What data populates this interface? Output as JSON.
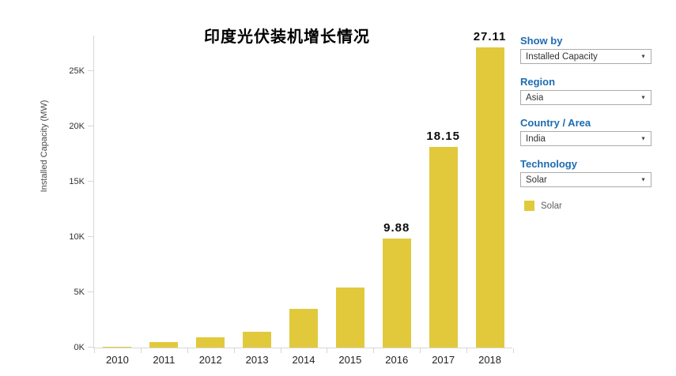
{
  "chart": {
    "title": "印度光伏装机增长情况",
    "y_axis_title": "Installed Capacity (MW)"
  },
  "chart_data": {
    "type": "bar",
    "title": "印度光伏装机增长情况",
    "xlabel": "",
    "ylabel": "Installed Capacity (MW)",
    "units": "thousand MW (K)",
    "categories": [
      "2010",
      "2011",
      "2012",
      "2013",
      "2014",
      "2015",
      "2016",
      "2017",
      "2018"
    ],
    "values": [
      0.1,
      0.5,
      0.9,
      1.4,
      3.5,
      5.4,
      9.88,
      18.15,
      27.11
    ],
    "bar_labels": [
      "",
      "",
      "",
      "",
      "",
      "",
      "9.88",
      "18.15",
      "27.11"
    ],
    "y_ticks": [
      {
        "label": "0K",
        "v": 0
      },
      {
        "label": "5K",
        "v": 5
      },
      {
        "label": "10K",
        "v": 10
      },
      {
        "label": "15K",
        "v": 15
      },
      {
        "label": "20K",
        "v": 20
      },
      {
        "label": "25K",
        "v": 25
      }
    ],
    "ylim": [
      0,
      28.3
    ],
    "grid": false,
    "bar_color": "#e2c93c",
    "legend_position": "right-panel",
    "series_name": "Solar"
  },
  "panel": {
    "filters": [
      {
        "label": "Show by",
        "value": "Installed Capacity"
      },
      {
        "label": "Region",
        "value": "Asia"
      },
      {
        "label": "Country / Area",
        "value": "India"
      },
      {
        "label": "Technology",
        "value": "Solar"
      }
    ],
    "legend": {
      "label": "Solar",
      "color": "#e2c93c"
    }
  },
  "colors": {
    "accent_blue": "#1e6cb0",
    "bar_yellow": "#e2c93c",
    "axis_gray": "#d7d7d7"
  }
}
